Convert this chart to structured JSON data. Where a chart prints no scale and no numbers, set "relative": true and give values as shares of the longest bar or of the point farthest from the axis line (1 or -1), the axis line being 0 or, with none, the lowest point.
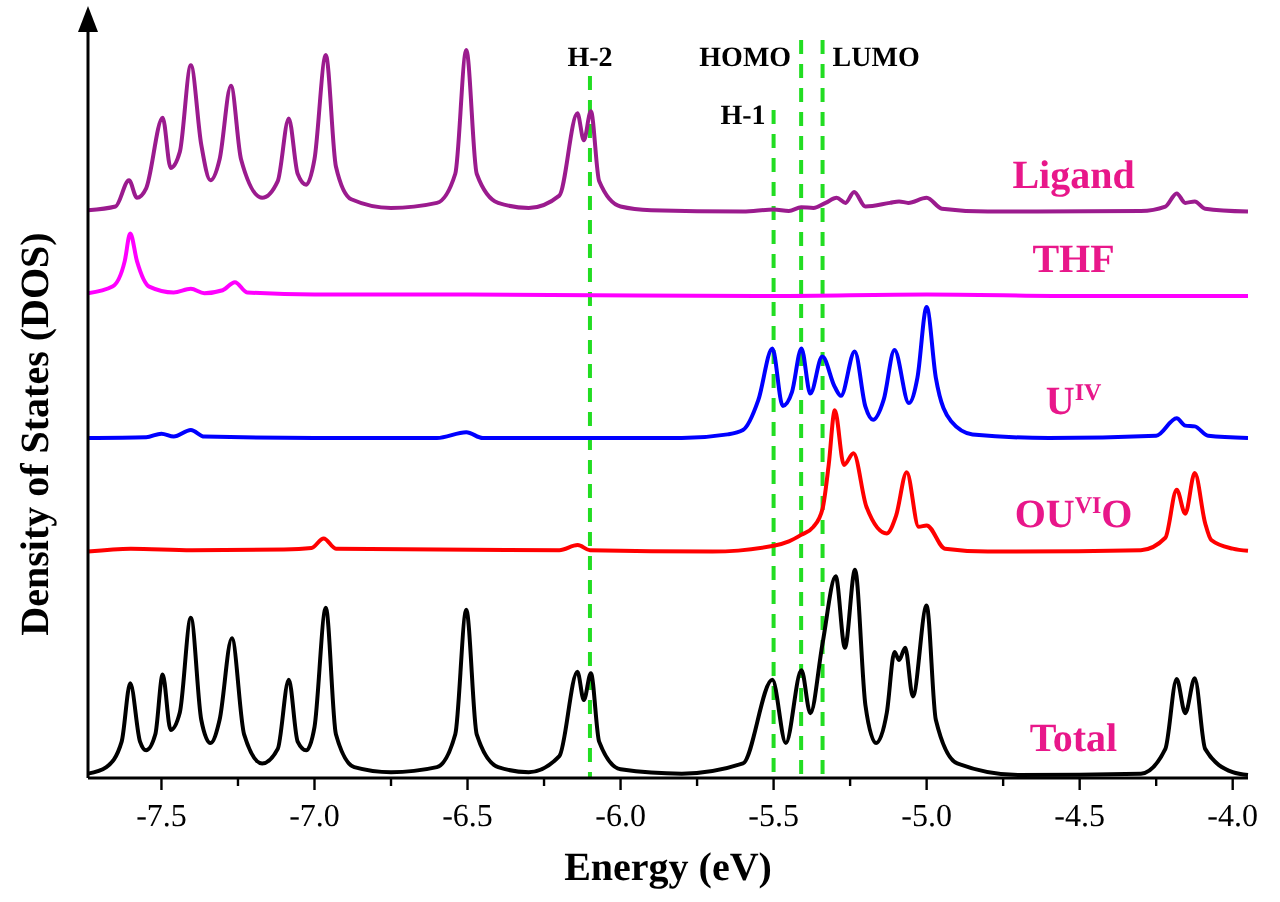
{
  "chart_data": {
    "type": "line",
    "relative": true,
    "xlabel": "Energy (eV)",
    "ylabel": "Density of States (DOS)",
    "xlim": [
      -7.74,
      -3.95
    ],
    "xticks": [
      {
        "value": -7.5,
        "label": "-7.5"
      },
      {
        "value": -7.25,
        "label": null
      },
      {
        "value": -7,
        "label": "-7.0"
      },
      {
        "value": -6.75,
        "label": null
      },
      {
        "value": -6.5,
        "label": "-6.5"
      },
      {
        "value": -6.25,
        "label": null
      },
      {
        "value": -6,
        "label": "-6.0"
      },
      {
        "value": -5.75,
        "label": null
      },
      {
        "value": -5.5,
        "label": "-5.5"
      },
      {
        "value": -5.25,
        "label": null
      },
      {
        "value": -5,
        "label": "-5.0"
      },
      {
        "value": -4.75,
        "label": null
      },
      {
        "value": -4.5,
        "label": "-4.5"
      },
      {
        "value": -4.25,
        "label": null
      },
      {
        "value": -4,
        "label": "-4.0"
      }
    ],
    "grid": false,
    "marker": "none",
    "line_style": "solid",
    "ref_lines": [
      {
        "axis": "x",
        "value": -6.1,
        "label": "H-2",
        "color": "#22dd22",
        "line_style": "dashed"
      },
      {
        "axis": "x",
        "value": -5.5,
        "label": "H-1",
        "color": "#22dd22",
        "line_style": "dashed"
      },
      {
        "axis": "x",
        "value": -5.41,
        "label": "HOMO",
        "color": "#22dd22",
        "line_style": "dashed"
      },
      {
        "axis": "x",
        "value": -5.34,
        "label": "LUMO",
        "color": "#22dd22",
        "line_style": "dashed"
      }
    ],
    "series": [
      {
        "name": "Ligand",
        "color": "#9b1b8e",
        "x": [
          -7.74,
          -7.65,
          -7.606,
          -7.58,
          -7.55,
          -7.496,
          -7.47,
          -7.44,
          -7.404,
          -7.37,
          -7.34,
          -7.31,
          -7.273,
          -7.24,
          -7.171,
          -7.12,
          -7.084,
          -7.055,
          -7.027,
          -7.0,
          -6.963,
          -6.93,
          -6.88,
          -6.75,
          -6.6,
          -6.54,
          -6.504,
          -6.47,
          -6.4,
          -6.3,
          -6.2,
          -6.141,
          -6.12,
          -6.097,
          -6.07,
          -6.0,
          -5.9,
          -5.6,
          -5.5,
          -5.45,
          -5.41,
          -5.37,
          -5.33,
          -5.294,
          -5.265,
          -5.237,
          -5.2,
          -5.12,
          -5.09,
          -5.06,
          -5.0,
          -4.95,
          -4.8,
          -4.3,
          -4.22,
          -4.183,
          -4.155,
          -4.124,
          -4.09,
          -3.95
        ],
        "values": [
          0.78,
          0.785,
          0.821,
          0.797,
          0.81,
          0.907,
          0.838,
          0.86,
          0.979,
          0.87,
          0.821,
          0.85,
          0.951,
          0.85,
          0.797,
          0.82,
          0.906,
          0.83,
          0.815,
          0.85,
          0.993,
          0.84,
          0.795,
          0.783,
          0.79,
          0.83,
          1.0,
          0.83,
          0.79,
          0.783,
          0.8,
          0.913,
          0.876,
          0.916,
          0.82,
          0.785,
          0.78,
          0.778,
          0.781,
          0.779,
          0.784,
          0.783,
          0.79,
          0.797,
          0.79,
          0.805,
          0.785,
          0.79,
          0.792,
          0.79,
          0.797,
          0.782,
          0.778,
          0.779,
          0.785,
          0.803,
          0.79,
          0.792,
          0.782,
          0.778
        ]
      },
      {
        "name": "THF",
        "color": "#ff00ff",
        "x": [
          -7.74,
          -7.66,
          -7.62,
          -7.602,
          -7.58,
          -7.54,
          -7.46,
          -7.404,
          -7.36,
          -7.3,
          -7.26,
          -7.22,
          -7.0,
          -6.5,
          -5.5,
          -5.0,
          -4.5,
          -3.95
        ],
        "values": [
          0.666,
          0.675,
          0.71,
          0.748,
          0.71,
          0.675,
          0.667,
          0.672,
          0.666,
          0.67,
          0.681,
          0.667,
          0.664,
          0.664,
          0.662,
          0.664,
          0.662,
          0.662
        ]
      },
      {
        "name": "U$^{IV}$",
        "color": "#0000ff",
        "x": [
          -7.74,
          -7.55,
          -7.5,
          -7.46,
          -7.404,
          -7.36,
          -7.0,
          -6.6,
          -6.504,
          -6.45,
          -5.8,
          -5.65,
          -5.6,
          -5.55,
          -5.504,
          -5.47,
          -5.44,
          -5.409,
          -5.38,
          -5.341,
          -5.3,
          -5.28,
          -5.235,
          -5.2,
          -5.175,
          -5.14,
          -5.105,
          -5.058,
          -5.03,
          -5.0,
          -4.97,
          -4.92,
          -4.85,
          -4.6,
          -4.25,
          -4.183,
          -4.155,
          -4.124,
          -4.08,
          -3.95
        ],
        "values": [
          0.467,
          0.468,
          0.473,
          0.469,
          0.478,
          0.469,
          0.467,
          0.467,
          0.475,
          0.467,
          0.467,
          0.472,
          0.478,
          0.519,
          0.59,
          0.511,
          0.53,
          0.59,
          0.528,
          0.579,
          0.537,
          0.525,
          0.586,
          0.51,
          0.492,
          0.52,
          0.588,
          0.515,
          0.55,
          0.647,
          0.55,
          0.49,
          0.472,
          0.467,
          0.47,
          0.494,
          0.484,
          0.483,
          0.47,
          0.467
        ]
      },
      {
        "name": "OU$^{VI}$O",
        "color": "#ff0000",
        "x": [
          -7.74,
          -7.6,
          -7.4,
          -7.1,
          -7.01,
          -6.97,
          -6.93,
          -6.2,
          -6.14,
          -6.1,
          -5.7,
          -5.5,
          -5.45,
          -5.41,
          -5.37,
          -5.34,
          -5.32,
          -5.3,
          -5.27,
          -5.239,
          -5.197,
          -5.13,
          -5.1,
          -5.065,
          -5.026,
          -5.0,
          -4.94,
          -4.8,
          -4.3,
          -4.22,
          -4.183,
          -4.155,
          -4.124,
          -4.09,
          -4.07,
          -4.0,
          -3.95
        ],
        "values": [
          0.311,
          0.315,
          0.313,
          0.314,
          0.316,
          0.329,
          0.315,
          0.313,
          0.32,
          0.313,
          0.311,
          0.319,
          0.325,
          0.334,
          0.345,
          0.37,
          0.43,
          0.505,
          0.43,
          0.446,
          0.373,
          0.336,
          0.36,
          0.42,
          0.345,
          0.347,
          0.315,
          0.311,
          0.313,
          0.33,
          0.396,
          0.363,
          0.419,
          0.35,
          0.327,
          0.315,
          0.312
        ]
      },
      {
        "name": "Total",
        "color": "#000000",
        "x": [
          -7.74,
          -7.68,
          -7.63,
          -7.602,
          -7.57,
          -7.55,
          -7.52,
          -7.496,
          -7.47,
          -7.44,
          -7.404,
          -7.37,
          -7.34,
          -7.31,
          -7.27,
          -7.23,
          -7.171,
          -7.12,
          -7.084,
          -7.055,
          -7.027,
          -7.0,
          -6.963,
          -6.93,
          -6.87,
          -6.75,
          -6.6,
          -6.54,
          -6.504,
          -6.47,
          -6.4,
          -6.3,
          -6.2,
          -6.141,
          -6.12,
          -6.097,
          -6.07,
          -6.0,
          -5.8,
          -5.6,
          -5.504,
          -5.46,
          -5.409,
          -5.38,
          -5.34,
          -5.297,
          -5.267,
          -5.234,
          -5.2,
          -5.165,
          -5.13,
          -5.105,
          -5.09,
          -5.07,
          -5.045,
          -5.0,
          -4.97,
          -4.9,
          -4.7,
          -4.3,
          -4.22,
          -4.183,
          -4.155,
          -4.124,
          -4.09,
          -4.0,
          -3.95
        ],
        "values": [
          0.006,
          0.015,
          0.05,
          0.13,
          0.05,
          0.038,
          0.06,
          0.142,
          0.066,
          0.09,
          0.22,
          0.08,
          0.048,
          0.08,
          0.192,
          0.06,
          0.02,
          0.04,
          0.135,
          0.05,
          0.038,
          0.07,
          0.234,
          0.06,
          0.015,
          0.008,
          0.015,
          0.06,
          0.231,
          0.06,
          0.015,
          0.008,
          0.03,
          0.146,
          0.107,
          0.144,
          0.05,
          0.012,
          0.006,
          0.02,
          0.135,
          0.048,
          0.148,
          0.089,
          0.185,
          0.277,
          0.179,
          0.286,
          0.1,
          0.048,
          0.09,
          0.173,
          0.162,
          0.179,
          0.112,
          0.237,
          0.08,
          0.02,
          0.004,
          0.006,
          0.04,
          0.136,
          0.089,
          0.137,
          0.04,
          0.008,
          0.004
        ]
      }
    ]
  }
}
